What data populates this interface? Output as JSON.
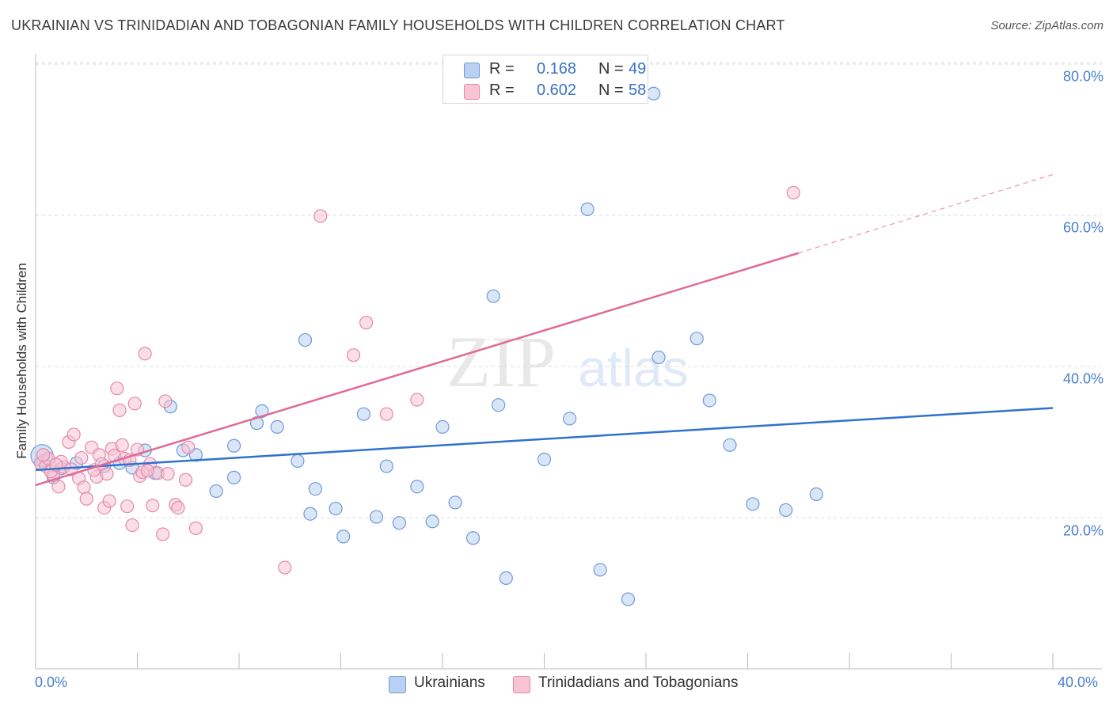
{
  "title": "UKRAINIAN VS TRINIDADIAN AND TOBAGONIAN FAMILY HOUSEHOLDS WITH CHILDREN CORRELATION CHART",
  "source": "Source: ZipAtlas.com",
  "watermark": {
    "zip": "ZIP",
    "atlas": "atlas"
  },
  "legend": {
    "r_label": "R =",
    "n_label": "N =",
    "rows": [
      {
        "r": "0.168",
        "n": "49"
      },
      {
        "r": "0.602",
        "n": "58"
      }
    ]
  },
  "colors": {
    "blue_fill": "#b9d1f2",
    "blue_stroke": "#6f9ad8",
    "blue_line": "#2f72d0",
    "pink_fill": "#f8c3d3",
    "pink_stroke": "#e48aa8",
    "pink_line": "#e06b93",
    "tick_text": "#4a7fc9",
    "grid": "#dcdcdc"
  },
  "chart_data": {
    "type": "scatter",
    "xlabel": "",
    "ylabel": "Family Households with Children",
    "xlim": [
      0,
      40
    ],
    "ylim": [
      0,
      85
    ],
    "x_ticks": [
      "0.0%",
      "40.0%"
    ],
    "y_ticks": [
      {
        "value": 20,
        "label": "20.0%"
      },
      {
        "value": 40,
        "label": "40.0%"
      },
      {
        "value": 60,
        "label": "60.0%"
      },
      {
        "value": 80,
        "label": "80.0%"
      }
    ],
    "grid": true,
    "legend_position": "top-center",
    "series": [
      {
        "name": "Ukrainians",
        "trend": {
          "x": [
            0,
            40
          ],
          "y": [
            26.3,
            34.5
          ],
          "dashed_after": null
        },
        "points": [
          [
            0.3,
            27.5
          ],
          [
            0.7,
            25.3
          ],
          [
            1.0,
            26.5
          ],
          [
            1.6,
            27.2
          ],
          [
            2.7,
            26.8
          ],
          [
            3.3,
            27.2
          ],
          [
            3.8,
            26.6
          ],
          [
            4.3,
            28.9
          ],
          [
            4.7,
            25.9
          ],
          [
            5.3,
            34.7
          ],
          [
            5.8,
            28.9
          ],
          [
            6.3,
            28.3
          ],
          [
            7.1,
            23.5
          ],
          [
            7.8,
            29.5
          ],
          [
            7.8,
            25.3
          ],
          [
            8.7,
            32.5
          ],
          [
            8.9,
            34.1
          ],
          [
            9.5,
            32.0
          ],
          [
            10.3,
            27.5
          ],
          [
            10.6,
            43.5
          ],
          [
            10.8,
            20.5
          ],
          [
            11.0,
            23.8
          ],
          [
            11.8,
            21.2
          ],
          [
            12.1,
            17.5
          ],
          [
            12.9,
            33.7
          ],
          [
            13.4,
            20.1
          ],
          [
            13.8,
            26.8
          ],
          [
            14.3,
            19.3
          ],
          [
            15.0,
            24.1
          ],
          [
            15.6,
            19.5
          ],
          [
            16.0,
            32.0
          ],
          [
            16.5,
            22.0
          ],
          [
            17.2,
            17.3
          ],
          [
            18.0,
            49.3
          ],
          [
            18.2,
            34.9
          ],
          [
            18.5,
            12.0
          ],
          [
            20.0,
            27.7
          ],
          [
            21.0,
            33.1
          ],
          [
            21.7,
            60.8
          ],
          [
            22.2,
            13.1
          ],
          [
            23.3,
            9.2
          ],
          [
            24.3,
            76.1
          ],
          [
            24.5,
            41.2
          ],
          [
            26.0,
            43.7
          ],
          [
            26.5,
            35.5
          ],
          [
            27.3,
            29.6
          ],
          [
            28.2,
            21.8
          ],
          [
            29.5,
            21.0
          ],
          [
            30.7,
            23.1
          ]
        ]
      },
      {
        "name": "Trinidadians and Tobagonians",
        "trend": {
          "x": [
            0,
            30
          ],
          "y": [
            24.3,
            55.0
          ],
          "dashed_to": [
            40,
            65.4
          ]
        },
        "points": [
          [
            0.2,
            27.2
          ],
          [
            0.4,
            26.8
          ],
          [
            0.5,
            27.8
          ],
          [
            0.7,
            25.6
          ],
          [
            0.9,
            24.1
          ],
          [
            1.1,
            26.7
          ],
          [
            1.3,
            30.0
          ],
          [
            1.5,
            31.0
          ],
          [
            1.7,
            25.2
          ],
          [
            1.9,
            24.0
          ],
          [
            2.0,
            22.5
          ],
          [
            2.2,
            29.3
          ],
          [
            2.4,
            25.4
          ],
          [
            2.5,
            28.3
          ],
          [
            2.7,
            21.3
          ],
          [
            2.8,
            25.8
          ],
          [
            2.9,
            22.2
          ],
          [
            3.0,
            29.1
          ],
          [
            3.1,
            28.2
          ],
          [
            3.2,
            37.1
          ],
          [
            3.3,
            34.2
          ],
          [
            3.4,
            29.6
          ],
          [
            3.5,
            27.8
          ],
          [
            3.6,
            21.5
          ],
          [
            3.8,
            19.0
          ],
          [
            3.9,
            35.1
          ],
          [
            4.0,
            29.0
          ],
          [
            4.1,
            25.5
          ],
          [
            4.2,
            26.0
          ],
          [
            4.3,
            41.7
          ],
          [
            4.5,
            27.1
          ],
          [
            4.6,
            21.6
          ],
          [
            4.8,
            25.9
          ],
          [
            5.0,
            17.8
          ],
          [
            5.1,
            35.4
          ],
          [
            5.2,
            25.8
          ],
          [
            5.5,
            21.7
          ],
          [
            5.6,
            21.3
          ],
          [
            5.9,
            25.0
          ],
          [
            6.0,
            29.3
          ],
          [
            6.3,
            18.6
          ],
          [
            9.8,
            13.4
          ],
          [
            11.2,
            59.9
          ],
          [
            12.5,
            41.5
          ],
          [
            13.0,
            45.8
          ],
          [
            13.8,
            33.7
          ],
          [
            15.0,
            35.6
          ],
          [
            29.8,
            63.0
          ],
          [
            0.6,
            26.1
          ],
          [
            1.0,
            27.4
          ],
          [
            1.4,
            26.4
          ],
          [
            1.8,
            27.9
          ],
          [
            2.3,
            26.3
          ],
          [
            2.6,
            27.1
          ],
          [
            3.7,
            27.6
          ],
          [
            4.4,
            26.2
          ],
          [
            0.3,
            28.3
          ],
          [
            0.8,
            27.0
          ]
        ]
      }
    ]
  }
}
